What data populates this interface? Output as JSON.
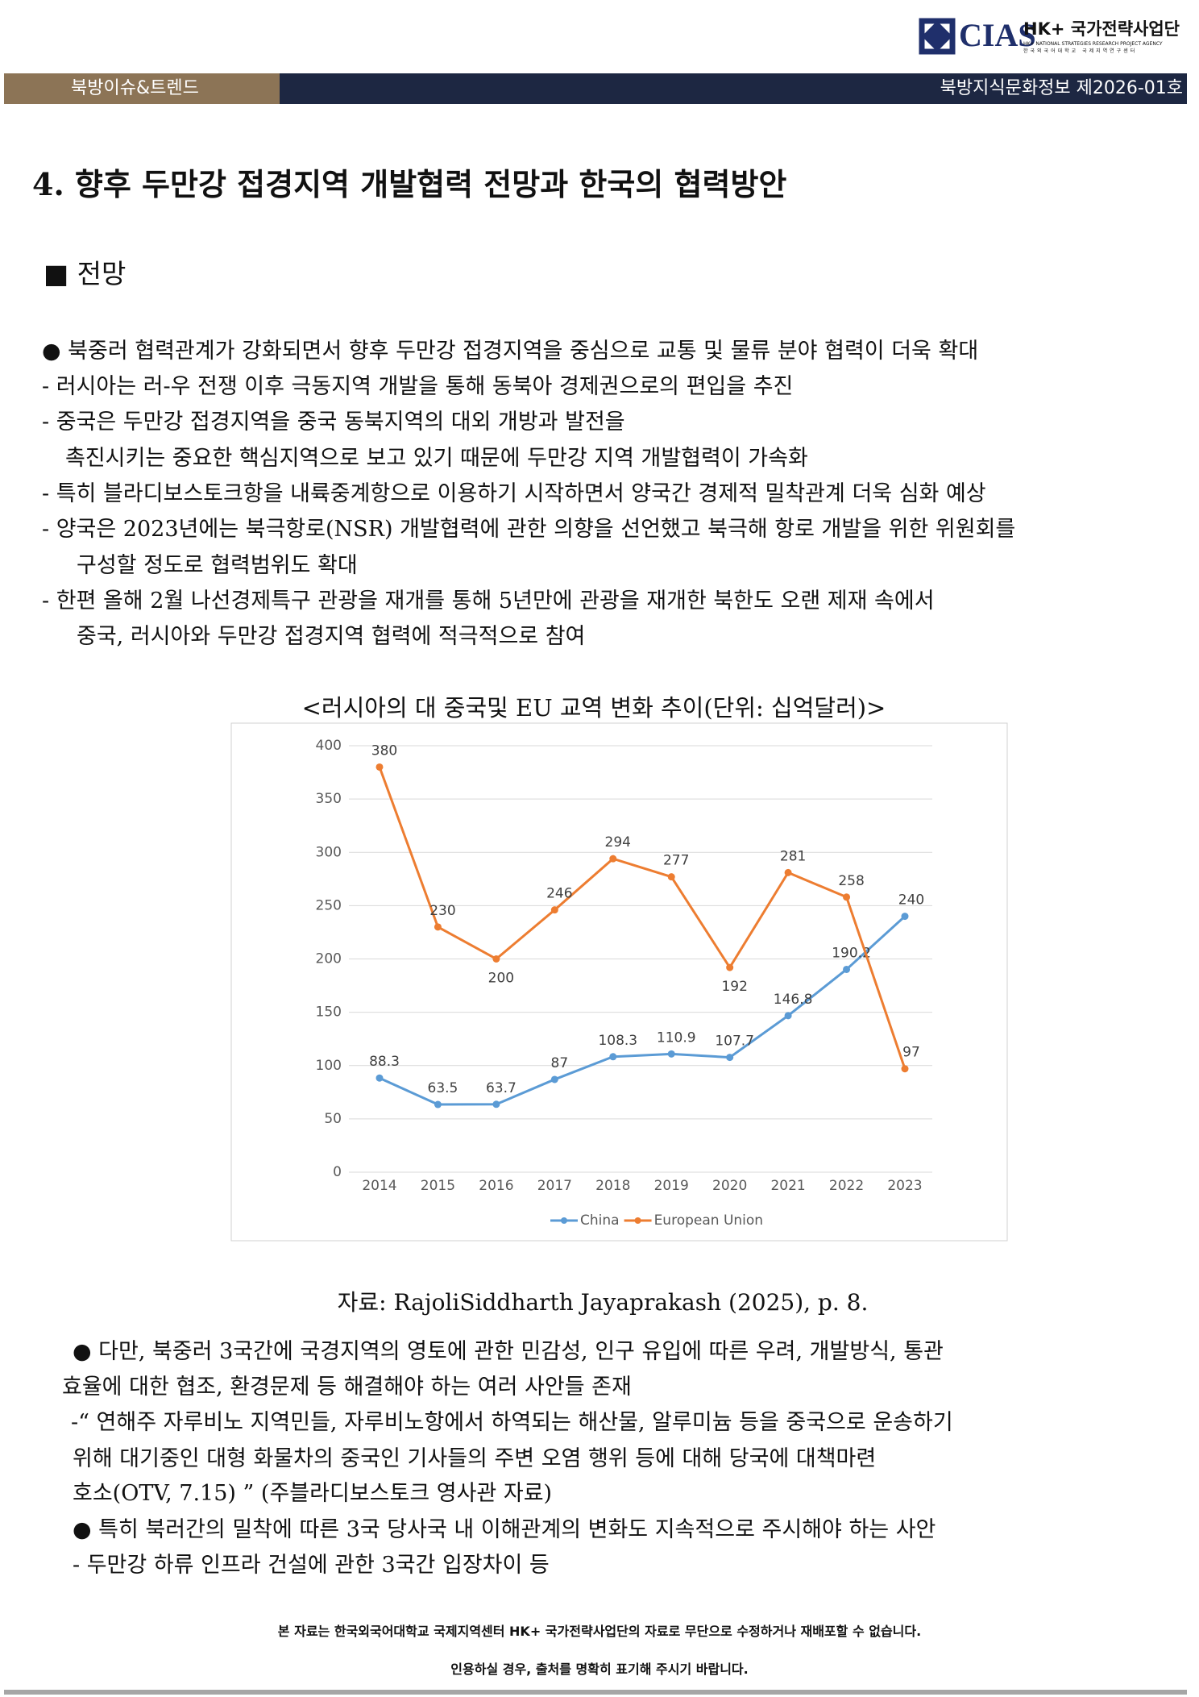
{
  "header": {
    "logo": "CIAS",
    "agency": "HK+ 국가전략사업단",
    "agency_en": "HK+ NATIONAL STRATEGIES RESEARCH PROJECT AGENCY",
    "agency_kr": "한국외국어대학교 국제지역연구센터",
    "section": "북방이슈&트렌드",
    "issue": "북방지식문화정보 제2026-01호"
  },
  "title": "4. 향후 두만강 접경지역 개발협력 전망과 한국의 협력방안",
  "subheading": "■ 전망",
  "outlook": [
    "● 북중러 협력관계가 강화되면서 향후 두만강 접경지역을 중심으로 교통 및 물류 분야 협력이 더욱 확대",
    "- 러시아는 러-우 전쟁 이후 극동지역 개발을 통해 동북아 경제권으로의 편입을 추진",
    "- 중국은 두만강 접경지역을 중국 동북지역의 대외 개방과 발전을",
    "촉진시키는 중요한 핵심지역으로 보고 있기 때문에 두만강 지역 개발협력이 가속화",
    "- 특히 블라디보스토크항을 내륙중계항으로 이용하기 시작하면서 양국간 경제적 밀착관계 더욱 심화 예상",
    "- 양국은 2023년에는 북극항로(NSR) 개발협력에 관한 의향을 선언했고 북극해 항로 개발을 위한 위원회를",
    "구성할 정도로 협력범위도 확대",
    "- 한편 올해 2월 나선경제특구 관광을 재개를 통해 5년만에 관광을 재개한 북한도 오랜 제재 속에서",
    "중국, 러시아와 두만강 접경지역 협력에 적극적으로 참여"
  ],
  "chart_data": {
    "type": "line",
    "title": "<러시아의 대 중국및 EU 교역 변화 추이(단위: 십억달러)>",
    "categories": [
      "2014",
      "2015",
      "2016",
      "2017",
      "2018",
      "2019",
      "2020",
      "2021",
      "2022",
      "2023"
    ],
    "series": [
      {
        "name": "China",
        "color": "#5b9bd5",
        "values": [
          88.3,
          63.5,
          63.7,
          87,
          108.3,
          110.9,
          107.7,
          146.8,
          190.2,
          240
        ]
      },
      {
        "name": "European Union",
        "color": "#ed7d31",
        "values": [
          380,
          230,
          200,
          246,
          294,
          277,
          192,
          281,
          258,
          97
        ]
      }
    ],
    "ylim": [
      0,
      400
    ],
    "yticks": [
      0,
      50,
      100,
      150,
      200,
      250,
      300,
      350,
      400
    ],
    "grid": true,
    "legend": "bottom"
  },
  "source": "자료: RajoliSiddharth Jayaprakash (2025), p. 8.",
  "issues": [
    "● 다만, 북중러 3국간에 국경지역의 영토에 관한 민감성, 인구 유입에 따른 우려, 개발방식, 통관",
    "효율에 대한 협조, 환경문제 등 해결해야 하는 여러 사안들 존재",
    "-“ 연해주 자루비노 지역민들, 자루비노항에서 하역되는 해산물, 알루미늄 등을 중국으로 운송하기",
    "위해 대기중인 대형 화물차의 중국인 기사들의 주변 오염 행위 등에 대해 당국에 대책마련",
    "호소(OTV, 7.15) ” (주블라디보스토크 영사관 자료)",
    "● 특히 북러간의 밀착에 따른 3국 당사국 내 이해관계의 변화도 지속적으로 주시해야 하는 사안",
    "- 두만강 하류 인프라 건설에 관한 3국간 입장차이 등"
  ],
  "footer": [
    "본 자료는 한국외국어대학교 국제지역센터 HK+ 국가전략사업단의 자료로 무단으로 수정하거나 재배포할 수 없습니다.",
    "인용하실 경우, 출처를 명확히 표기해 주시기 바랍니다."
  ]
}
